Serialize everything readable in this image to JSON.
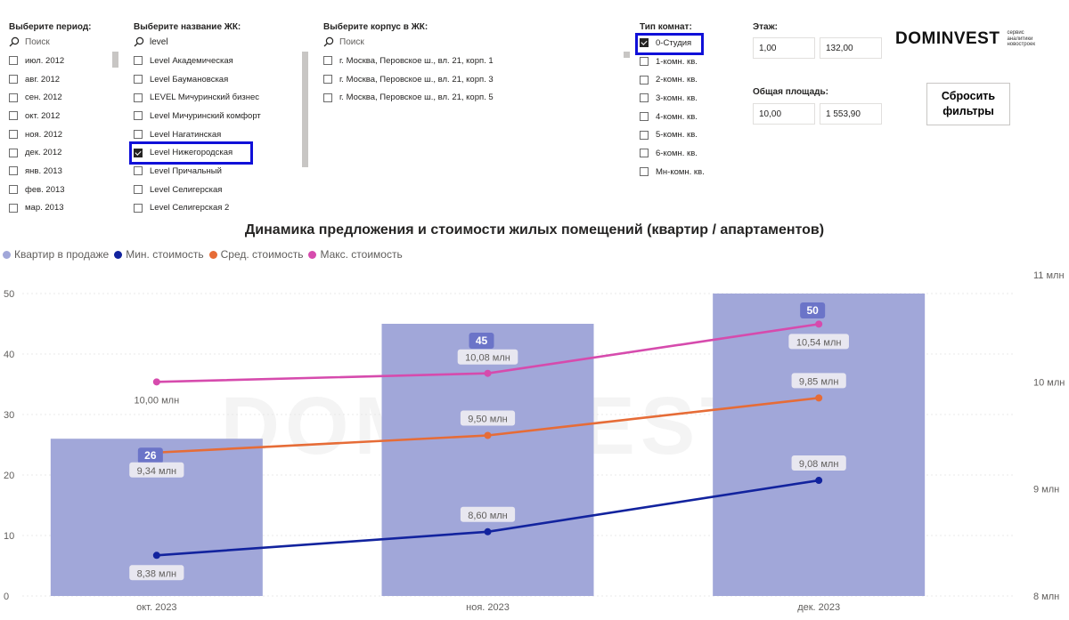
{
  "filters": {
    "period": {
      "title": "Выберите период:",
      "search_placeholder": "Поиск",
      "items": [
        {
          "label": "июл. 2012",
          "checked": false
        },
        {
          "label": "авг. 2012",
          "checked": false
        },
        {
          "label": "сен. 2012",
          "checked": false
        },
        {
          "label": "окт. 2012",
          "checked": false
        },
        {
          "label": "ноя. 2012",
          "checked": false
        },
        {
          "label": "дек. 2012",
          "checked": false
        },
        {
          "label": "янв. 2013",
          "checked": false
        },
        {
          "label": "фев. 2013",
          "checked": false
        },
        {
          "label": "мар. 2013",
          "checked": false
        }
      ]
    },
    "complex": {
      "title": "Выберите название ЖК:",
      "search_value": "level",
      "items": [
        {
          "label": "Level Академическая",
          "checked": false
        },
        {
          "label": "Level Баумановская",
          "checked": false
        },
        {
          "label": "LEVEL Мичуринский бизнес",
          "checked": false
        },
        {
          "label": "Level Мичуринский комфорт",
          "checked": false
        },
        {
          "label": "Level Нагатинская",
          "checked": false
        },
        {
          "label": "Level Нижегородская",
          "checked": true
        },
        {
          "label": "Level Причальный",
          "checked": false
        },
        {
          "label": "Level Селигерская",
          "checked": false
        },
        {
          "label": "Level Селигерская 2",
          "checked": false
        }
      ]
    },
    "building": {
      "title": "Выберите корпус в ЖК:",
      "search_placeholder": "Поиск",
      "items": [
        {
          "label": "г. Москва, Перовское ш., вл. 21, корп. 1",
          "checked": false
        },
        {
          "label": "г. Москва, Перовское ш., вл. 21, корп. 3",
          "checked": false
        },
        {
          "label": "г. Москва, Перовское ш., вл. 21, корп. 5",
          "checked": false
        }
      ]
    },
    "rooms": {
      "title": "Тип комнат:",
      "items": [
        {
          "label": "0-Студия",
          "checked": true
        },
        {
          "label": "1-комн. кв.",
          "checked": false
        },
        {
          "label": "2-комн. кв.",
          "checked": false
        },
        {
          "label": "3-комн. кв.",
          "checked": false
        },
        {
          "label": "4-комн. кв.",
          "checked": false
        },
        {
          "label": "5-комн. кв.",
          "checked": false
        },
        {
          "label": "6-комн. кв.",
          "checked": false
        },
        {
          "label": "Мн-комн. кв.",
          "checked": false
        }
      ]
    },
    "floor": {
      "title": "Этаж:",
      "min": "1,00",
      "max": "132,00"
    },
    "area": {
      "title": "Общая площадь:",
      "min": "10,00",
      "max": "1 553,90"
    },
    "reset_label_line1": "Сбросить",
    "reset_label_line2": "фильтры"
  },
  "logo": {
    "name": "DOMINVEST",
    "tagline_1": "сервис",
    "tagline_2": "аналитики",
    "tagline_3": "новостроек"
  },
  "watermark": "DOMINVEST",
  "chart_data": {
    "type": "bar",
    "title": "Динамика предложения и стоимости жилых помещений (квартир / апартаментов)",
    "categories": [
      "окт. 2023",
      "ноя. 2023",
      "дек. 2023"
    ],
    "bar_series": {
      "name": "Квартир в продаже",
      "color": "#a1a7d9",
      "values": [
        26,
        45,
        50
      ],
      "value_labels": [
        "26",
        "45",
        "50"
      ]
    },
    "line_series": [
      {
        "name": "Мин. стоимость",
        "color": "#12239e",
        "values": [
          8.38,
          8.6,
          9.08
        ],
        "labels": [
          "8,38 млн",
          "8,60 млн",
          "9,08 млн"
        ]
      },
      {
        "name": "Сред. стоимость",
        "color": "#e66c37",
        "values": [
          9.34,
          9.5,
          9.85
        ],
        "labels": [
          "9,34 млн",
          "9,50 млн",
          "9,85 млн"
        ]
      },
      {
        "name": "Макс. стоимость",
        "color": "#d64bad",
        "values": [
          10.0,
          10.08,
          10.54
        ],
        "labels": [
          "10,00 млн",
          "10,08 млн",
          "10,54 млн"
        ]
      }
    ],
    "y_left": {
      "ticks": [
        "0",
        "10",
        "20",
        "30",
        "40",
        "50"
      ],
      "ylim": [
        0,
        50
      ]
    },
    "y_right": {
      "ticks": [
        "8 млн",
        "9 млн",
        "10 млн",
        "11 млн"
      ],
      "ylim": [
        8,
        11
      ]
    },
    "grid": true,
    "legend_position": "top-left"
  }
}
